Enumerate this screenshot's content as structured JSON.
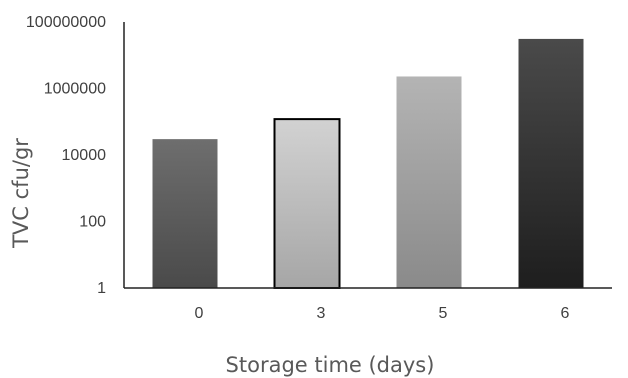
{
  "chart_data": {
    "type": "bar",
    "title": "",
    "xlabel": "Storage time (days)",
    "ylabel": "TVC cfu/gr",
    "yscale": "log",
    "ylim": [
      1,
      100000000
    ],
    "yticks": [
      1,
      100,
      10000,
      1000000,
      100000000
    ],
    "ytick_labels": [
      "1",
      "100",
      "10000",
      "1000000",
      "100000000"
    ],
    "categories": [
      "0",
      "3",
      "5",
      "6"
    ],
    "values": [
      30000,
      120000,
      2300000,
      31000000
    ],
    "grid": false,
    "legend": "none",
    "colors": {
      "bar_0": [
        "#6e6e6e",
        "#4a4a4a"
      ],
      "bar_3": [
        "#d2d2d2",
        "#a6a6a6"
      ],
      "bar_5": [
        "#b4b4b4",
        "#8a8a8a"
      ],
      "bar_6": [
        "#4a4a4a",
        "#1e1e1e"
      ],
      "bar_3_outline": "#000000",
      "axis": "#222222"
    }
  }
}
